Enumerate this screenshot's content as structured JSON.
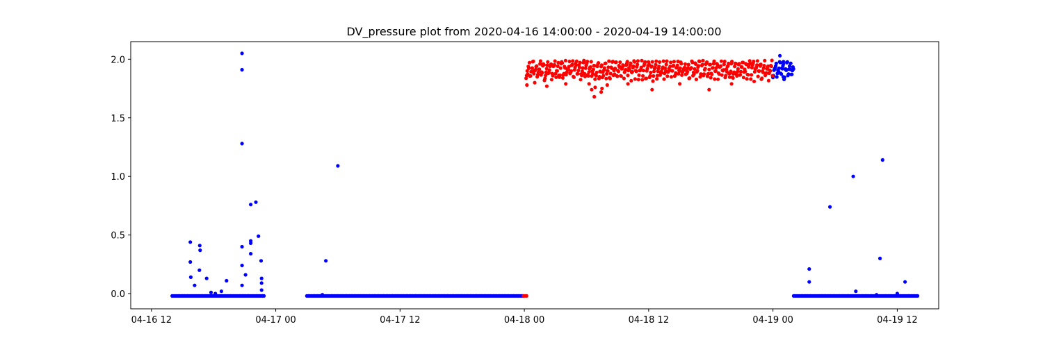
{
  "chart_data": {
    "type": "scatter",
    "title": "DV_pressure plot from 2020-04-16 14:00:00 - 2020-04-19 14:00:00",
    "xlabel": "",
    "ylabel": "",
    "x_unit": "datetime",
    "xlim": [
      "2020-04-16 10:00",
      "2020-04-19 16:00"
    ],
    "ylim": [
      -0.13,
      2.15
    ],
    "x_ticks": [
      {
        "value": "2020-04-16 12:00",
        "label": "04-16 12"
      },
      {
        "value": "2020-04-17 00:00",
        "label": "04-17 00"
      },
      {
        "value": "2020-04-17 12:00",
        "label": "04-17 12"
      },
      {
        "value": "2020-04-18 00:00",
        "label": "04-18 00"
      },
      {
        "value": "2020-04-18 12:00",
        "label": "04-18 12"
      },
      {
        "value": "2020-04-19 00:00",
        "label": "04-19 00"
      },
      {
        "value": "2020-04-19 12:00",
        "label": "04-19 12"
      }
    ],
    "y_ticks": [
      {
        "value": 0.0,
        "label": "0.0"
      },
      {
        "value": 0.5,
        "label": "0.5"
      },
      {
        "value": 1.0,
        "label": "1.0"
      },
      {
        "value": 1.5,
        "label": "1.5"
      },
      {
        "value": 2.0,
        "label": "2.0"
      }
    ],
    "grid": false,
    "legend": "none",
    "series": [
      {
        "color": "#0000ff",
        "baselines": [
          {
            "from": "2020-04-16 14:00",
            "to": "2020-04-16 23:00",
            "y": -0.02
          },
          {
            "from": "2020-04-17 03:00",
            "to": "2020-04-17 23:55",
            "y": -0.02
          },
          {
            "from": "2020-04-19 02:00",
            "to": "2020-04-19 14:00",
            "y": -0.02
          }
        ],
        "bands": [
          {
            "from": "2020-04-19 00:00",
            "to": "2020-04-19 02:00",
            "ymin": 1.82,
            "ymax": 1.98
          }
        ],
        "points": [
          {
            "x": "2020-04-16 15:45",
            "y": 0.44
          },
          {
            "x": "2020-04-16 15:45",
            "y": 0.27
          },
          {
            "x": "2020-04-16 15:48",
            "y": 0.14
          },
          {
            "x": "2020-04-16 16:10",
            "y": 0.07
          },
          {
            "x": "2020-04-16 16:40",
            "y": 0.41
          },
          {
            "x": "2020-04-16 16:42",
            "y": 0.37
          },
          {
            "x": "2020-04-16 16:38",
            "y": 0.2
          },
          {
            "x": "2020-04-16 17:20",
            "y": 0.13
          },
          {
            "x": "2020-04-16 17:45",
            "y": 0.01
          },
          {
            "x": "2020-04-16 18:10",
            "y": 0.0
          },
          {
            "x": "2020-04-16 18:45",
            "y": 0.02
          },
          {
            "x": "2020-04-16 19:15",
            "y": 0.11
          },
          {
            "x": "2020-04-16 20:45",
            "y": 2.05
          },
          {
            "x": "2020-04-16 20:45",
            "y": 1.91
          },
          {
            "x": "2020-04-16 20:45",
            "y": 1.28
          },
          {
            "x": "2020-04-16 20:45",
            "y": 0.4
          },
          {
            "x": "2020-04-16 20:45",
            "y": 0.24
          },
          {
            "x": "2020-04-16 20:45",
            "y": 0.07
          },
          {
            "x": "2020-04-16 21:05",
            "y": 0.16
          },
          {
            "x": "2020-04-16 21:35",
            "y": 0.76
          },
          {
            "x": "2020-04-16 21:35",
            "y": 0.45
          },
          {
            "x": "2020-04-16 21:35",
            "y": 0.43
          },
          {
            "x": "2020-04-16 21:35",
            "y": 0.34
          },
          {
            "x": "2020-04-16 22:05",
            "y": 0.78
          },
          {
            "x": "2020-04-16 22:20",
            "y": 0.49
          },
          {
            "x": "2020-04-16 22:35",
            "y": 0.28
          },
          {
            "x": "2020-04-16 22:38",
            "y": 0.13
          },
          {
            "x": "2020-04-16 22:38",
            "y": 0.09
          },
          {
            "x": "2020-04-16 22:38",
            "y": 0.03
          },
          {
            "x": "2020-04-17 04:30",
            "y": -0.01
          },
          {
            "x": "2020-04-17 04:50",
            "y": 0.28
          },
          {
            "x": "2020-04-17 06:00",
            "y": 1.09
          },
          {
            "x": "2020-04-19 00:40",
            "y": 2.03
          },
          {
            "x": "2020-04-19 01:00",
            "y": 1.96
          },
          {
            "x": "2020-04-19 01:00",
            "y": 1.85
          },
          {
            "x": "2020-04-19 03:30",
            "y": 0.21
          },
          {
            "x": "2020-04-19 03:30",
            "y": 0.1
          },
          {
            "x": "2020-04-19 05:30",
            "y": 0.74
          },
          {
            "x": "2020-04-19 07:45",
            "y": 1.0
          },
          {
            "x": "2020-04-19 08:00",
            "y": 0.02
          },
          {
            "x": "2020-04-19 10:00",
            "y": -0.01
          },
          {
            "x": "2020-04-19 10:20",
            "y": 0.3
          },
          {
            "x": "2020-04-19 10:35",
            "y": 1.14
          },
          {
            "x": "2020-04-19 12:00",
            "y": 0.0
          },
          {
            "x": "2020-04-19 12:45",
            "y": 0.1
          }
        ]
      },
      {
        "color": "#ff0000",
        "baselines": [
          {
            "from": "2020-04-17 23:55",
            "to": "2020-04-18 00:15",
            "y": -0.02
          }
        ],
        "bands": [
          {
            "from": "2020-04-18 00:10",
            "to": "2020-04-19 00:00",
            "ymin": 1.8,
            "ymax": 1.99
          }
        ],
        "points": [
          {
            "x": "2020-04-18 00:15",
            "y": 1.78
          },
          {
            "x": "2020-04-18 01:00",
            "y": 1.8
          },
          {
            "x": "2020-04-18 02:10",
            "y": 1.77
          },
          {
            "x": "2020-04-18 04:00",
            "y": 1.79
          },
          {
            "x": "2020-04-18 06:15",
            "y": 1.79
          },
          {
            "x": "2020-04-18 06:30",
            "y": 1.74
          },
          {
            "x": "2020-04-18 06:45",
            "y": 1.68
          },
          {
            "x": "2020-04-18 06:50",
            "y": 1.76
          },
          {
            "x": "2020-04-18 07:25",
            "y": 1.72
          },
          {
            "x": "2020-04-18 07:30",
            "y": 1.75
          },
          {
            "x": "2020-04-18 08:00",
            "y": 1.78
          },
          {
            "x": "2020-04-18 10:00",
            "y": 1.79
          },
          {
            "x": "2020-04-18 12:20",
            "y": 1.74
          },
          {
            "x": "2020-04-18 15:00",
            "y": 1.79
          },
          {
            "x": "2020-04-18 17:50",
            "y": 1.74
          },
          {
            "x": "2020-04-18 20:00",
            "y": 1.79
          }
        ]
      }
    ]
  }
}
